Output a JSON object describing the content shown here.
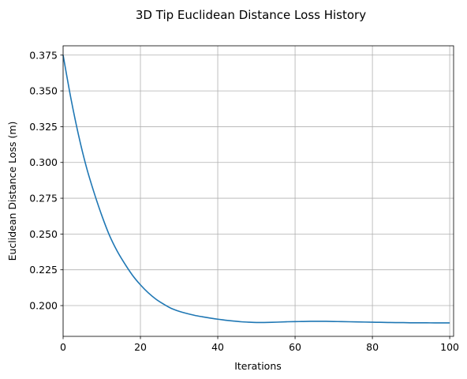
{
  "chart_data": {
    "type": "line",
    "title": "3D Tip Euclidean Distance Loss History",
    "xlabel": "Iterations",
    "ylabel": "Euclidean Distance Loss (m)",
    "xlim": [
      0,
      101
    ],
    "ylim": [
      0.1785,
      0.3815
    ],
    "grid": true,
    "x_ticks": [
      0,
      20,
      40,
      60,
      80,
      100
    ],
    "x_tick_labels": [
      "0",
      "20",
      "40",
      "60",
      "80",
      "100"
    ],
    "y_ticks": [
      0.2,
      0.225,
      0.25,
      0.275,
      0.3,
      0.325,
      0.35,
      0.375
    ],
    "y_tick_labels": [
      "0.200",
      "0.225",
      "0.250",
      "0.275",
      "0.300",
      "0.325",
      "0.350",
      "0.375"
    ],
    "line_color": "#1f77b4",
    "series": [
      {
        "x": [
          0,
          2,
          4,
          6,
          8,
          10,
          12,
          14,
          16,
          18,
          20,
          22,
          24,
          26,
          28,
          30,
          32,
          34,
          36,
          38,
          40,
          42,
          44,
          46,
          48,
          50,
          52,
          54,
          56,
          58,
          60,
          62,
          64,
          66,
          68,
          70,
          72,
          74,
          76,
          78,
          80,
          82,
          84,
          86,
          88,
          90,
          92,
          94,
          96,
          98,
          100
        ],
        "values": [
          0.375,
          0.345,
          0.319,
          0.297,
          0.279,
          0.263,
          0.249,
          0.238,
          0.229,
          0.221,
          0.2145,
          0.209,
          0.2045,
          0.201,
          0.198,
          0.196,
          0.1945,
          0.1932,
          0.1922,
          0.1913,
          0.1905,
          0.1898,
          0.1892,
          0.1887,
          0.1884,
          0.1882,
          0.1882,
          0.1883,
          0.1885,
          0.1887,
          0.1888,
          0.1889,
          0.189,
          0.189,
          0.189,
          0.1889,
          0.1888,
          0.1887,
          0.1886,
          0.1885,
          0.1884,
          0.1883,
          0.1882,
          0.1881,
          0.1881,
          0.188,
          0.188,
          0.188,
          0.1879,
          0.1879,
          0.1879
        ]
      }
    ]
  }
}
